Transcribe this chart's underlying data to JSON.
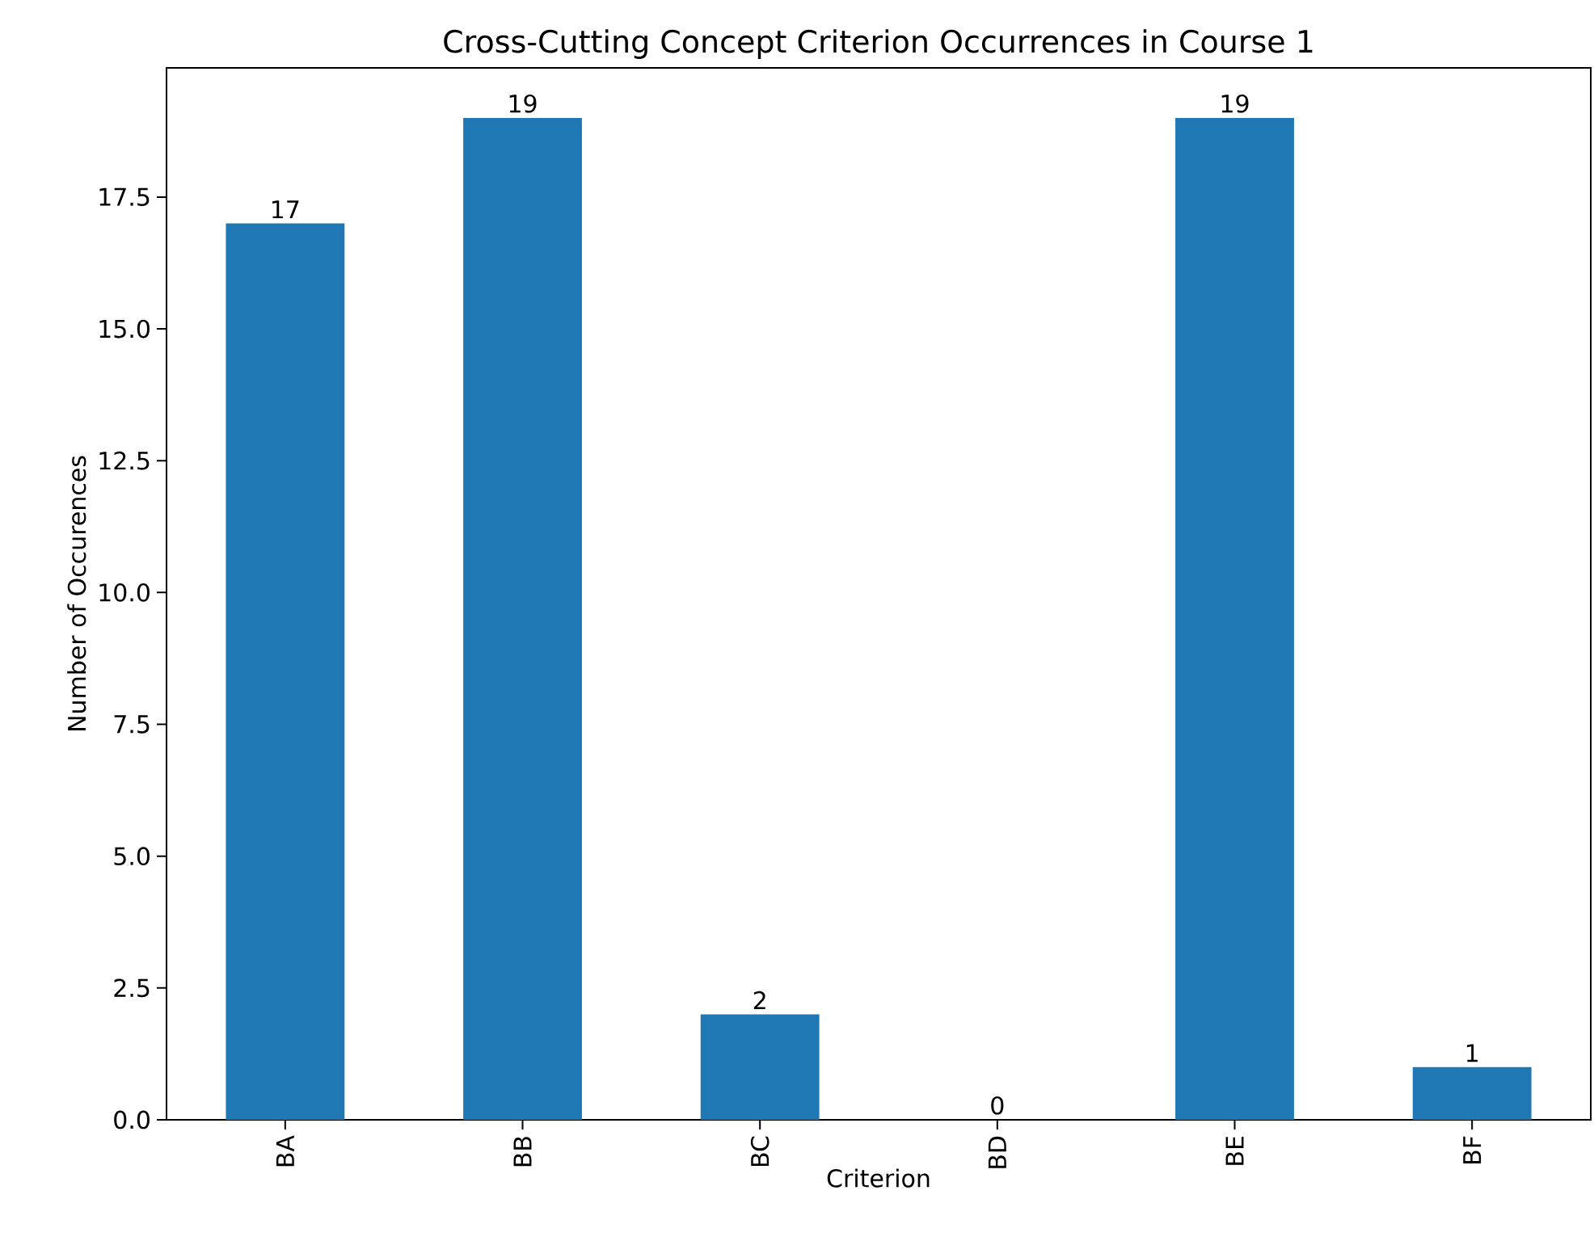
{
  "chart_data": {
    "type": "bar",
    "title": "Cross-Cutting Concept Criterion Occurrences in Course 1",
    "xlabel": "Criterion",
    "ylabel": "Number of Occurences",
    "categories": [
      "BA",
      "BB",
      "BC",
      "BD",
      "BE",
      "BF"
    ],
    "values": [
      17,
      19,
      2,
      0,
      19,
      1
    ],
    "color": "#1f77b4",
    "ylim": [
      0,
      19.95
    ],
    "yticks": [
      {
        "value": 0,
        "label": "0.0"
      },
      {
        "value": 2.5,
        "label": "2.5"
      },
      {
        "value": 5,
        "label": "5.0"
      },
      {
        "value": 7.5,
        "label": "7.5"
      },
      {
        "value": 10,
        "label": "10.0"
      },
      {
        "value": 12.5,
        "label": "12.5"
      },
      {
        "value": 15,
        "label": "15.0"
      },
      {
        "value": 17.5,
        "label": "17.5"
      }
    ],
    "data_labels": true
  }
}
